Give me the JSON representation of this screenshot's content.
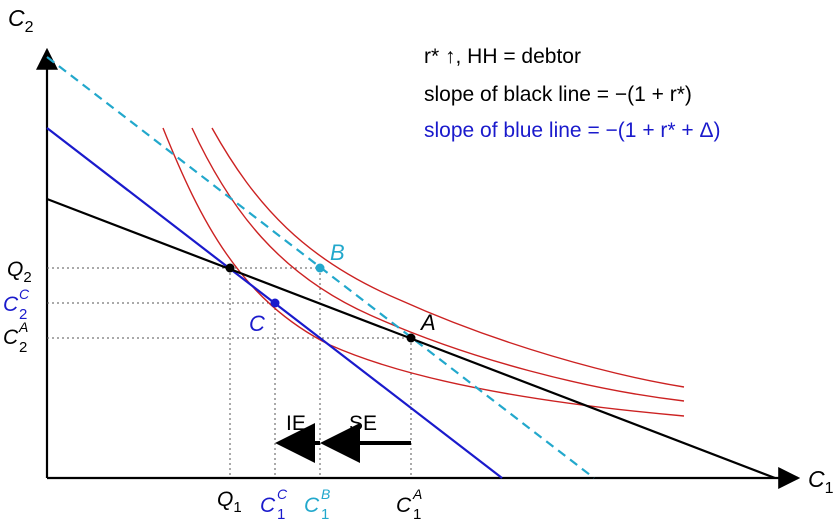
{
  "axes": {
    "y_label": "C",
    "y_label_sub": "2",
    "x_label": "C",
    "x_label_sub": "1"
  },
  "annotations": {
    "line1": "r* ↑, HH = debtor",
    "line2": "slope of black line = −(1 + r*)",
    "line3": "slope of blue line = −(1 + r* + Δ)"
  },
  "points": {
    "A": "A",
    "B": "B",
    "C": "C"
  },
  "y_ticks": [
    {
      "base": "Q",
      "sub": "2",
      "sup": ""
    },
    {
      "base": "C",
      "sub": "2",
      "sup": "C"
    },
    {
      "base": "C",
      "sub": "2",
      "sup": "A"
    }
  ],
  "x_ticks": [
    {
      "base": "Q",
      "sub": "1",
      "sup": ""
    },
    {
      "base": "C",
      "sub": "1",
      "sup": "C"
    },
    {
      "base": "C",
      "sub": "1",
      "sup": "B"
    },
    {
      "base": "C",
      "sub": "1",
      "sup": "A"
    }
  ],
  "arrows": {
    "IE": "IE",
    "SE": "SE"
  },
  "colors": {
    "black_line": "#000000",
    "blue_line": "#1a1acc",
    "cyan_line": "#22a8cc",
    "indifference": "#cc2222"
  }
}
